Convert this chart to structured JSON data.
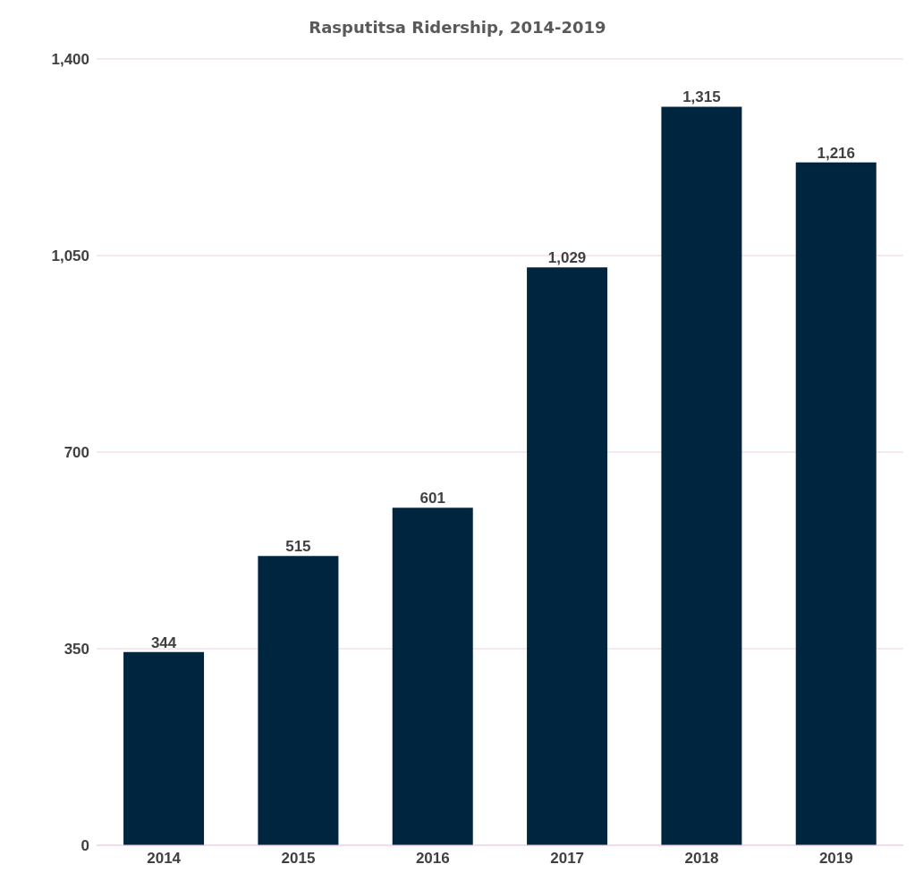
{
  "chart_data": {
    "type": "bar",
    "title": "Rasputitsa Ridership, 2014-2019",
    "categories": [
      "2014",
      "2015",
      "2016",
      "2017",
      "2018",
      "2019"
    ],
    "values": [
      344,
      515,
      601,
      1029,
      1315,
      1216
    ],
    "color": "#00263f",
    "ylim": [
      0,
      1400
    ],
    "yticks": [
      {
        "value": 0,
        "label": "0"
      },
      {
        "value": 350,
        "label": "350"
      },
      {
        "value": 700,
        "label": "700"
      },
      {
        "value": 1050,
        "label": "1,050"
      },
      {
        "value": 1400,
        "label": "1,400"
      }
    ],
    "grid": "y",
    "value_labels": [
      "344",
      "515",
      "601",
      "1,029",
      "1,315",
      "1,216"
    ]
  }
}
